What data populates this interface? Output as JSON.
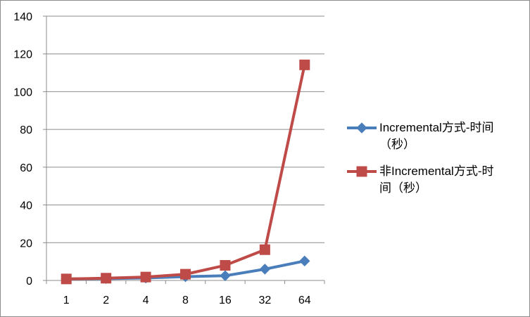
{
  "chart_data": {
    "type": "line",
    "categories": [
      "1",
      "2",
      "4",
      "8",
      "16",
      "32",
      "64"
    ],
    "series": [
      {
        "name_lines": [
          "Incremental方式-时间",
          "（秒）"
        ],
        "name": "Incremental方式-时间（秒）",
        "values": [
          0.8,
          1.0,
          1.3,
          2.0,
          2.5,
          6.0,
          10.3
        ],
        "color": "#4a7ebb",
        "marker": "diamond"
      },
      {
        "name_lines": [
          "非Incremental方式-时",
          "间（秒）"
        ],
        "name": "非Incremental方式-时间（秒）",
        "values": [
          0.8,
          1.2,
          1.8,
          3.3,
          8.0,
          16.3,
          114.2
        ],
        "color": "#be4b48",
        "marker": "square"
      }
    ],
    "yticks": [
      "0",
      "20",
      "40",
      "60",
      "80",
      "100",
      "120",
      "140"
    ],
    "ylim": [
      0,
      140
    ],
    "grid": true,
    "legend_position": "right"
  }
}
